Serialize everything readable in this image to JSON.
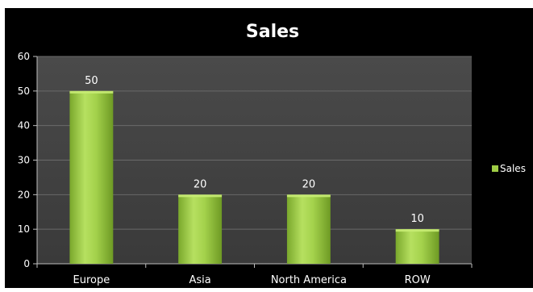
{
  "chart_data": {
    "type": "bar",
    "title": "Sales",
    "categories": [
      "Europe",
      "Asia",
      "North America",
      "ROW"
    ],
    "series": [
      {
        "name": "Sales",
        "values": [
          50,
          20,
          20,
          10
        ]
      }
    ],
    "data_labels": [
      "50",
      "20",
      "20",
      "10"
    ],
    "y_ticks": [
      "0",
      "10",
      "20",
      "30",
      "40",
      "50",
      "60"
    ],
    "ylim": [
      0,
      60
    ],
    "grid": true,
    "legend_position": "right",
    "colors": {
      "outer_background": "#000000",
      "plot_background": "#404040",
      "bar_light": "#c8ec74",
      "bar_mid": "#9fcd45",
      "bar_dark": "#6e9a24",
      "text": "#ffffff",
      "gridline": "#6a6a6a"
    }
  }
}
